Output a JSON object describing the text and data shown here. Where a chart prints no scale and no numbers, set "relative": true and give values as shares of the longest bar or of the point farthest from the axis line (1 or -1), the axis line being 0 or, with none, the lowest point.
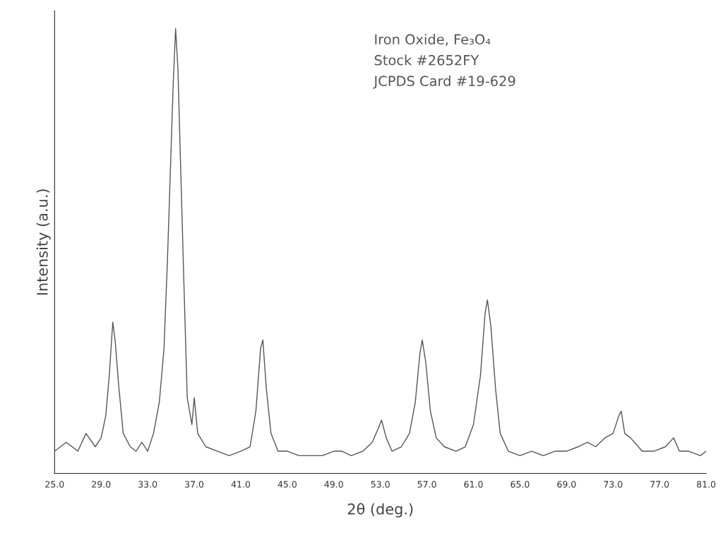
{
  "chart_data": {
    "type": "line",
    "xlabel": "2θ (deg.)",
    "ylabel": "Intensity (a.u.)",
    "relative": true,
    "tick_labels": "x",
    "grid": false,
    "annotations": [
      "Iron Oxide, Fe₃O₄",
      "Stock #2652FY",
      "JCPDS Card #19-629"
    ],
    "xlim": [
      25,
      81
    ],
    "xticks": [
      {
        "value": 25,
        "label": "25.0"
      },
      {
        "value": 29,
        "label": "29.0"
      },
      {
        "value": 33,
        "label": "33.0"
      },
      {
        "value": 37,
        "label": "37.0"
      },
      {
        "value": 41,
        "label": "41.0"
      },
      {
        "value": 45,
        "label": "45.0"
      },
      {
        "value": 49,
        "label": "49.0"
      },
      {
        "value": 53,
        "label": "53.0"
      },
      {
        "value": 57,
        "label": "57.0"
      },
      {
        "value": 61,
        "label": "61.0"
      },
      {
        "value": 65,
        "label": "65.0"
      },
      {
        "value": 69,
        "label": "69.0"
      },
      {
        "value": 73,
        "label": "73.0"
      },
      {
        "value": 77,
        "label": "77.0"
      },
      {
        "value": 81,
        "label": "81.0"
      }
    ],
    "series": [
      {
        "color": "#555555",
        "x": [
          25.0,
          26.0,
          27.0,
          27.7,
          28.5,
          29.0,
          29.4,
          29.7,
          30.0,
          30.2,
          30.5,
          30.9,
          31.5,
          32.0,
          32.5,
          33.0,
          33.5,
          34.0,
          34.4,
          34.7,
          35.0,
          35.2,
          35.4,
          35.6,
          35.8,
          36.1,
          36.4,
          36.8,
          37.0,
          37.3,
          38.0,
          39.0,
          40.0,
          41.0,
          41.8,
          42.3,
          42.7,
          42.9,
          43.2,
          43.6,
          44.2,
          45.0,
          46.0,
          47.0,
          48.0,
          49.0,
          49.7,
          50.5,
          51.5,
          52.3,
          52.8,
          53.1,
          53.5,
          54.0,
          54.8,
          55.5,
          56.0,
          56.4,
          56.6,
          56.9,
          57.3,
          57.8,
          58.5,
          59.5,
          60.3,
          61.0,
          61.6,
          62.0,
          62.2,
          62.5,
          62.9,
          63.3,
          64.0,
          65.0,
          66.0,
          67.0,
          68.0,
          69.0,
          70.0,
          70.8,
          71.5,
          72.3,
          73.0,
          73.5,
          73.7,
          74.0,
          74.5,
          75.5,
          76.5,
          77.5,
          78.2,
          78.7,
          79.5,
          80.5,
          81.0
        ],
        "values": [
          0.05,
          0.07,
          0.05,
          0.09,
          0.06,
          0.08,
          0.13,
          0.22,
          0.34,
          0.3,
          0.2,
          0.09,
          0.06,
          0.05,
          0.07,
          0.05,
          0.09,
          0.16,
          0.28,
          0.48,
          0.72,
          0.88,
          1.0,
          0.91,
          0.72,
          0.44,
          0.17,
          0.11,
          0.17,
          0.09,
          0.06,
          0.05,
          0.04,
          0.05,
          0.06,
          0.14,
          0.28,
          0.3,
          0.19,
          0.09,
          0.05,
          0.05,
          0.04,
          0.04,
          0.04,
          0.05,
          0.05,
          0.04,
          0.05,
          0.07,
          0.1,
          0.12,
          0.08,
          0.05,
          0.06,
          0.09,
          0.16,
          0.27,
          0.3,
          0.25,
          0.14,
          0.08,
          0.06,
          0.05,
          0.06,
          0.11,
          0.22,
          0.36,
          0.39,
          0.33,
          0.19,
          0.09,
          0.05,
          0.04,
          0.05,
          0.04,
          0.05,
          0.05,
          0.06,
          0.07,
          0.06,
          0.08,
          0.09,
          0.13,
          0.14,
          0.09,
          0.08,
          0.05,
          0.05,
          0.06,
          0.08,
          0.05,
          0.05,
          0.04,
          0.05
        ]
      }
    ]
  }
}
